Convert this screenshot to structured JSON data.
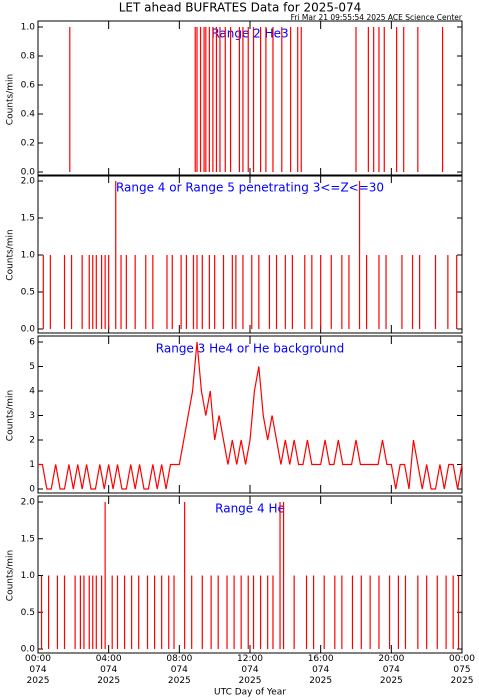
{
  "title": "LET ahead BUFRATES Data for 2025-074",
  "subtitle": "Fri Mar 21 09:55:54 2025 ACE Science Center",
  "xlabel": "UTC Day of Year",
  "xlim": [
    0,
    24
  ],
  "xticks": [
    {
      "value": 0,
      "label": "00:00\n074\n2025"
    },
    {
      "value": 4,
      "label": "04:00\n074\n2025"
    },
    {
      "value": 8,
      "label": "08:00\n074\n2025"
    },
    {
      "value": 12,
      "label": "12:00\n074\n2025"
    },
    {
      "value": 16,
      "label": "16:00\n074\n2025"
    },
    {
      "value": 20,
      "label": "20:00\n074\n2025"
    },
    {
      "value": 24,
      "label": "00:00\n075\n2025"
    }
  ],
  "chart_data": [
    {
      "type": "spike",
      "title": "Range 2 He3",
      "ylabel": "Counts/min",
      "color": "#ff0000",
      "title_color": "#0000ff",
      "ylim": [
        0,
        1
      ],
      "yticks": [
        {
          "value": 0,
          "label": "0.0"
        },
        {
          "value": 0.2,
          "label": "0.2"
        },
        {
          "value": 0.4,
          "label": "0.4"
        },
        {
          "value": 0.6,
          "label": "0.6"
        },
        {
          "value": 0.8,
          "label": "0.8"
        },
        {
          "value": 1,
          "label": "1.0"
        }
      ],
      "x": [
        1.8,
        8.9,
        9.0,
        9.2,
        9.4,
        9.5,
        9.7,
        9.9,
        10.1,
        10.3,
        10.6,
        10.9,
        11.4,
        11.6,
        11.9,
        12.2,
        12.6,
        12.9,
        13.3,
        13.8,
        14.3,
        14.7,
        14.9,
        18.0,
        18.7,
        19.0,
        19.3,
        19.6,
        20.3,
        20.7,
        21.5,
        22.9
      ],
      "values": [
        1,
        1,
        1,
        1,
        1,
        1,
        1,
        1,
        1,
        1,
        1,
        1,
        1,
        1,
        1,
        1,
        1,
        1,
        1,
        1,
        1,
        1,
        1,
        1,
        1,
        1,
        1,
        1,
        1,
        1,
        1,
        1
      ]
    },
    {
      "type": "spike",
      "title": "Range 4 or Range 5 penetrating 3<=Z<=30",
      "ylabel": "Counts/min",
      "color": "#ff0000",
      "title_color": "#0000ff",
      "ylim": [
        0,
        2
      ],
      "yticks": [
        {
          "value": 0,
          "label": "0.0"
        },
        {
          "value": 0.5,
          "label": "0.5"
        },
        {
          "value": 1,
          "label": "1.0"
        },
        {
          "value": 1.5,
          "label": "1.5"
        },
        {
          "value": 2,
          "label": "2.0"
        }
      ],
      "x": [
        0.3,
        0.7,
        1.5,
        1.9,
        2.5,
        2.9,
        3.1,
        3.3,
        3.6,
        3.8,
        4.0,
        4.4,
        4.7,
        5.0,
        5.5,
        6.1,
        6.5,
        7.3,
        7.6,
        8.1,
        8.4,
        8.8,
        9.0,
        9.3,
        9.7,
        10.0,
        10.5,
        11.0,
        11.2,
        11.6,
        12.1,
        12.5,
        13.1,
        13.5,
        14.0,
        14.4,
        15.1,
        15.5,
        16.0,
        16.6,
        17.2,
        17.6,
        18.2,
        18.6,
        19.3,
        19.7,
        20.6,
        21.2,
        21.6,
        22.5,
        23.2,
        23.7
      ],
      "values": [
        1,
        1,
        1,
        1,
        1,
        1,
        1,
        1,
        1,
        1,
        1,
        2,
        1,
        1,
        1,
        1,
        1,
        1,
        1,
        1,
        1,
        1,
        1,
        1,
        1,
        1,
        1,
        1,
        1,
        1,
        1,
        1,
        1,
        1,
        1,
        1,
        1,
        1,
        1,
        1,
        1,
        1,
        2,
        1,
        1,
        1,
        1,
        1,
        1,
        1,
        1,
        1
      ]
    },
    {
      "type": "line",
      "title": "Range 3 He4 or He background",
      "ylabel": "Counts/min",
      "color": "#ff0000",
      "title_color": "#0000ff",
      "ylim": [
        0,
        6
      ],
      "yticks": [
        0,
        1,
        2,
        3,
        4,
        5,
        6
      ],
      "x": [
        0,
        0.25,
        0.5,
        0.75,
        1,
        1.25,
        1.5,
        1.75,
        2,
        2.25,
        2.5,
        2.75,
        3,
        3.25,
        3.5,
        3.75,
        4,
        4.25,
        4.5,
        4.75,
        5,
        5.25,
        5.5,
        5.75,
        6,
        6.25,
        6.5,
        6.75,
        7,
        7.25,
        7.5,
        7.75,
        8,
        8.25,
        8.5,
        8.75,
        9,
        9.25,
        9.5,
        9.75,
        10,
        10.25,
        10.5,
        10.75,
        11,
        11.25,
        11.5,
        11.75,
        12,
        12.25,
        12.5,
        12.75,
        13,
        13.25,
        13.5,
        13.75,
        14,
        14.25,
        14.5,
        14.75,
        15,
        15.25,
        15.5,
        15.75,
        16,
        16.25,
        16.5,
        16.75,
        17,
        17.25,
        17.5,
        17.75,
        18,
        18.25,
        18.5,
        18.75,
        19,
        19.25,
        19.5,
        19.75,
        20,
        20.25,
        20.5,
        20.75,
        21,
        21.25,
        21.5,
        21.75,
        22,
        22.25,
        22.5,
        22.75,
        23,
        23.25,
        23.5,
        23.75,
        24
      ],
      "values": [
        1,
        1,
        0,
        0,
        1,
        0,
        0,
        1,
        0,
        1,
        0,
        1,
        0,
        0,
        1,
        0,
        1,
        0,
        1,
        0,
        0,
        1,
        0,
        1,
        0,
        0,
        1,
        0,
        1,
        0,
        1,
        1,
        1,
        2,
        3,
        4,
        6,
        4,
        3,
        4,
        2,
        3,
        2,
        1,
        2,
        1,
        2,
        1,
        2,
        4,
        5,
        3,
        2,
        3,
        2,
        1,
        2,
        1,
        2,
        1,
        1,
        2,
        1,
        1,
        1,
        2,
        1,
        1,
        2,
        1,
        1,
        1,
        2,
        1,
        1,
        1,
        1,
        1,
        2,
        1,
        1,
        0,
        1,
        1,
        0,
        2,
        1,
        0,
        1,
        0,
        0,
        1,
        0,
        1,
        1,
        0,
        1
      ]
    },
    {
      "type": "spike",
      "title": "Range 4 He",
      "ylabel": "Counts/min",
      "color": "#ff0000",
      "title_color": "#0000ff",
      "ylim": [
        0,
        2
      ],
      "yticks": [
        {
          "value": 0,
          "label": "0.0"
        },
        {
          "value": 0.5,
          "label": "0.5"
        },
        {
          "value": 1,
          "label": "1.0"
        },
        {
          "value": 1.5,
          "label": "1.5"
        },
        {
          "value": 2,
          "label": "2.0"
        }
      ],
      "x": [
        0.2,
        0.6,
        1.1,
        1.5,
        2.1,
        2.4,
        2.6,
        2.9,
        3.1,
        3.3,
        3.6,
        3.8,
        4.2,
        4.5,
        4.9,
        5.3,
        5.7,
        6.2,
        6.6,
        7.0,
        7.4,
        7.7,
        8.3,
        8.7,
        9.3,
        9.8,
        10.2,
        10.7,
        11.1,
        11.5,
        11.9,
        12.2,
        12.6,
        13.0,
        13.3,
        13.7,
        13.9,
        14.5,
        15.2,
        15.6,
        16.2,
        16.8,
        17.2,
        17.8,
        18.3,
        18.8,
        19.3,
        19.9,
        20.4,
        20.8,
        21.5,
        22.0,
        22.6,
        23.1,
        23.5,
        23.8
      ],
      "values": [
        1,
        1,
        1,
        1,
        1,
        1,
        1,
        1,
        1,
        1,
        1,
        2,
        1,
        1,
        1,
        1,
        1,
        1,
        1,
        1,
        1,
        1,
        2,
        1,
        1,
        1,
        1,
        1,
        1,
        1,
        1,
        1,
        1,
        1,
        1,
        2,
        2,
        1,
        1,
        1,
        1,
        1,
        1,
        1,
        1,
        1,
        1,
        1,
        1,
        1,
        1,
        1,
        1,
        1,
        1,
        1
      ]
    }
  ]
}
